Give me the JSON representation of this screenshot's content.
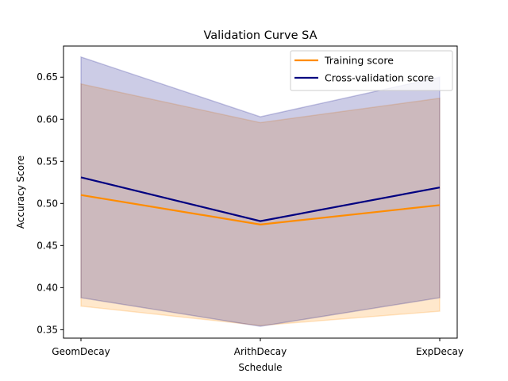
{
  "chart_data": {
    "type": "line",
    "title": "Validation Curve SA",
    "xlabel": "Schedule",
    "ylabel": "Accuracy Score",
    "categories": [
      "GeomDecay",
      "ArithDecay",
      "ExpDecay"
    ],
    "ylim": [
      0.34,
      0.687
    ],
    "yticks": [
      0.35,
      0.4,
      0.45,
      0.5,
      0.55,
      0.6,
      0.65
    ],
    "ytick_labels": [
      "0.35",
      "0.40",
      "0.45",
      "0.50",
      "0.55",
      "0.60",
      "0.65"
    ],
    "grid": false,
    "legend_position": "top-right",
    "series": [
      {
        "name": "Training score",
        "color": "#ff8c00",
        "values": [
          0.51,
          0.475,
          0.498
        ],
        "band_lower": [
          0.378,
          0.355,
          0.372
        ],
        "band_upper": [
          0.642,
          0.596,
          0.625
        ]
      },
      {
        "name": "Cross-validation score",
        "color": "#000080",
        "values": [
          0.531,
          0.479,
          0.519
        ],
        "band_lower": [
          0.388,
          0.354,
          0.388
        ],
        "band_upper": [
          0.674,
          0.603,
          0.65
        ]
      }
    ]
  }
}
